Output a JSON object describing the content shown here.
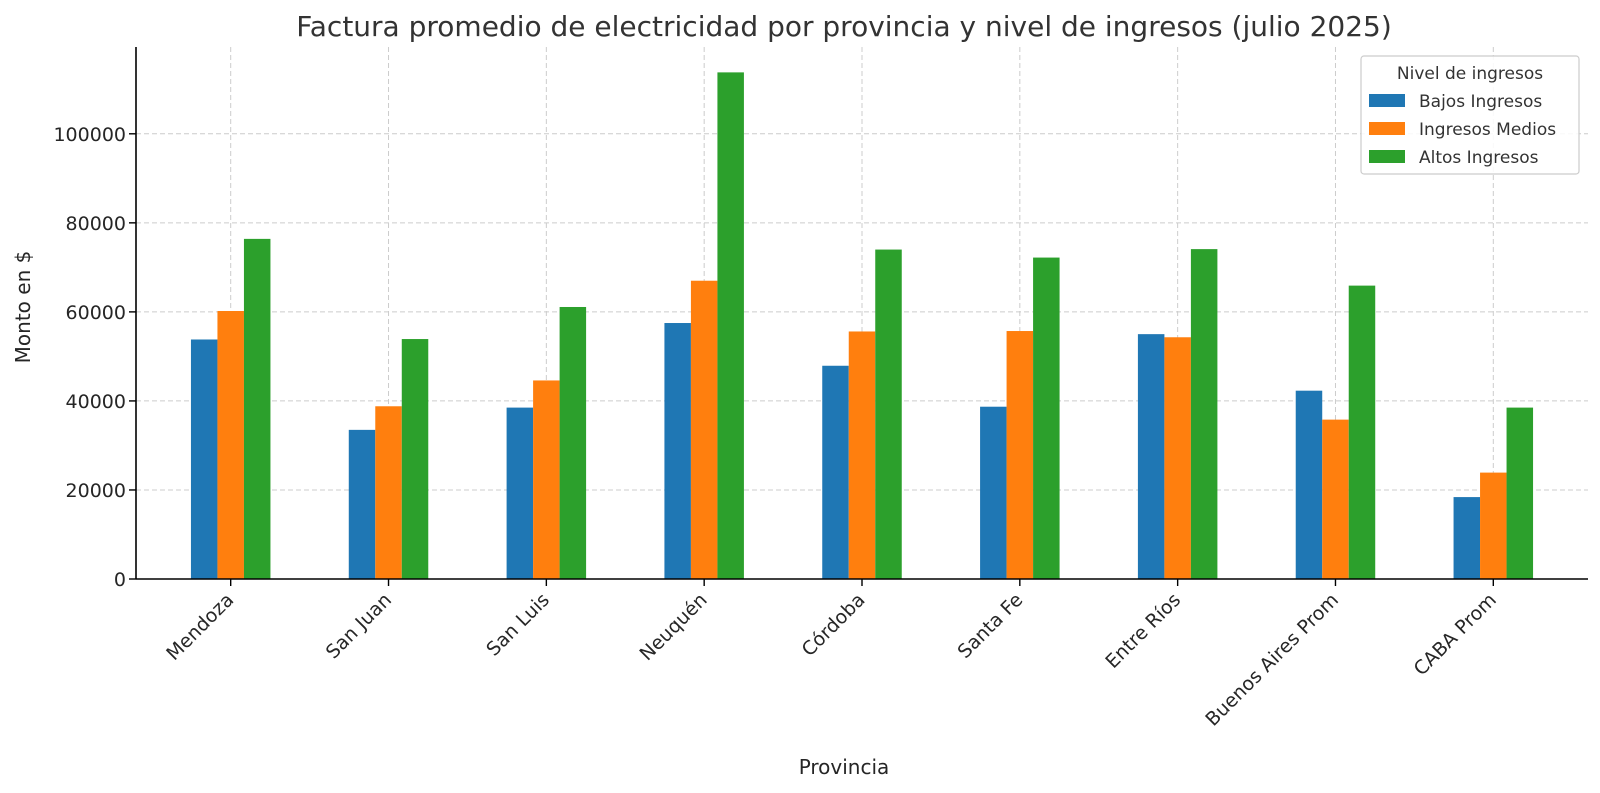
{
  "chart_data": {
    "type": "bar",
    "title": "Factura promedio de electricidad por provincia y nivel de ingresos (julio 2025)",
    "xlabel": "Provincia",
    "ylabel": "Monto en $",
    "categories": [
      "Mendoza",
      "San Juan",
      "San Luis",
      "Neuquén",
      "Córdoba",
      "Santa Fe",
      "Entre Ríos",
      "Buenos Aires Prom",
      "CABA Prom"
    ],
    "series": [
      {
        "name": "Bajos Ingresos",
        "color": "#1f77b4",
        "values": [
          53800,
          33500,
          38500,
          57500,
          47900,
          38700,
          55000,
          42300,
          18400
        ]
      },
      {
        "name": "Ingresos Medios",
        "color": "#ff7f0e",
        "values": [
          60200,
          38800,
          44600,
          67000,
          55600,
          55700,
          54300,
          35800,
          23900
        ]
      },
      {
        "name": "Altos Ingresos",
        "color": "#2ca02c",
        "values": [
          76400,
          53900,
          61100,
          113800,
          74000,
          72200,
          74100,
          65900,
          38500
        ]
      }
    ],
    "yticks": [
      0,
      20000,
      40000,
      60000,
      80000,
      100000
    ],
    "ylim": [
      0,
      119500
    ],
    "grid": true,
    "legend": {
      "title": "Nivel de ingresos",
      "placement": "top-right"
    }
  }
}
